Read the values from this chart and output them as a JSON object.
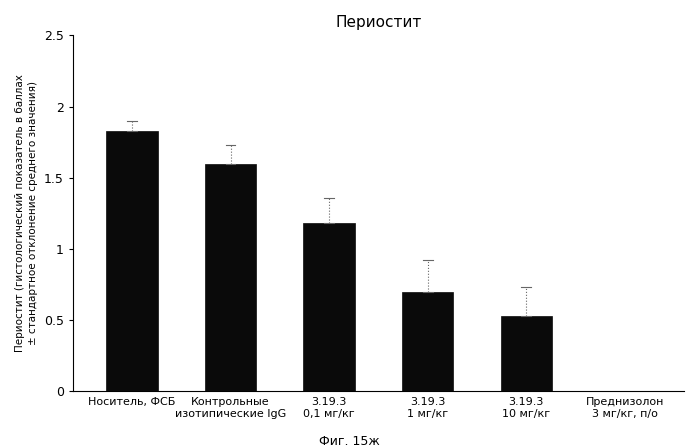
{
  "title": "Периостит",
  "categories": [
    "Носитель, ФСБ",
    "Контрольные\nизотипические IgG",
    "3.19.3\n0,1 мг/кг",
    "3.19.3\n1 мг/кг",
    "3.19.3\n10 мг/кг",
    "Преднизолон\n3 мг/кг, п/о"
  ],
  "values": [
    1.83,
    1.6,
    1.18,
    0.7,
    0.53,
    0.0
  ],
  "errors_up": [
    0.07,
    0.13,
    0.18,
    0.22,
    0.2,
    0.0
  ],
  "errors_down": [
    0.0,
    0.0,
    0.0,
    0.0,
    0.0,
    0.0
  ],
  "bar_color": "#0a0a0a",
  "ylim": [
    0,
    2.5
  ],
  "yticks": [
    0,
    0.5,
    1.0,
    1.5,
    2.0,
    2.5
  ],
  "ytick_labels": [
    "0",
    "0.5",
    "1",
    "1.5",
    "2",
    "2.5"
  ],
  "ylabel_line1": "Периостит (гистологический показатель в баллах",
  "ylabel_line2": "± стандартное отклонение среднего значения)",
  "caption": "Фиг. 15ж",
  "figsize": [
    6.99,
    4.47
  ],
  "dpi": 100
}
